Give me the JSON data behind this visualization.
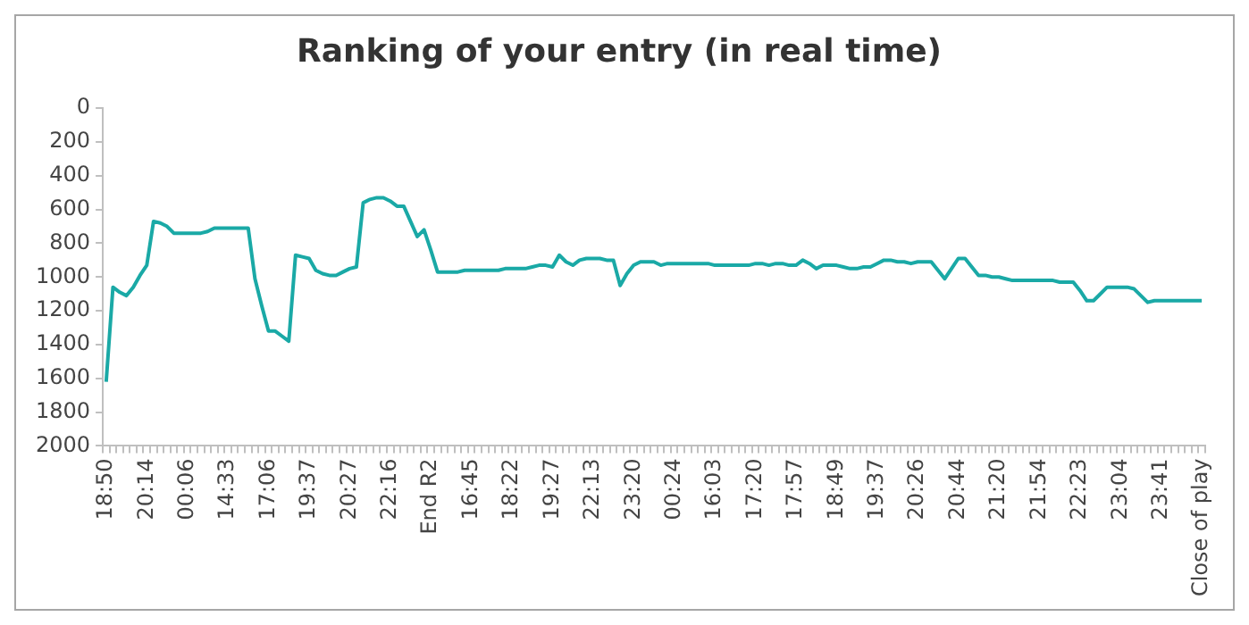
{
  "chart_data": {
    "type": "line",
    "title": "Ranking of your entry (in real time)",
    "categories": [
      "18:50",
      null,
      null,
      null,
      null,
      null,
      "20:14",
      null,
      null,
      null,
      null,
      null,
      "00:06",
      null,
      null,
      null,
      null,
      null,
      "14:33",
      null,
      null,
      null,
      null,
      null,
      "17:06",
      null,
      null,
      null,
      null,
      null,
      "19:37",
      null,
      null,
      null,
      null,
      null,
      "20:27",
      null,
      null,
      null,
      null,
      null,
      "22:16",
      null,
      null,
      null,
      null,
      null,
      "End R2",
      null,
      null,
      null,
      null,
      null,
      "16:45",
      null,
      null,
      null,
      null,
      null,
      "18:22",
      null,
      null,
      null,
      null,
      null,
      "19:27",
      null,
      null,
      null,
      null,
      null,
      "22:13",
      null,
      null,
      null,
      null,
      null,
      "23:20",
      null,
      null,
      null,
      null,
      null,
      "00:24",
      null,
      null,
      null,
      null,
      null,
      "16:03",
      null,
      null,
      null,
      null,
      null,
      "17:20",
      null,
      null,
      null,
      null,
      null,
      "17:57",
      null,
      null,
      null,
      null,
      null,
      "18:49",
      null,
      null,
      null,
      null,
      null,
      "19:37",
      null,
      null,
      null,
      null,
      null,
      "20:26",
      null,
      null,
      null,
      null,
      null,
      "20:44",
      null,
      null,
      null,
      null,
      null,
      "21:20",
      null,
      null,
      null,
      null,
      null,
      "21:54",
      null,
      null,
      null,
      null,
      null,
      "22:23",
      null,
      null,
      null,
      null,
      null,
      "23:04",
      null,
      null,
      null,
      null,
      null,
      "23:41",
      null,
      null,
      null,
      null,
      null,
      "Close of play"
    ],
    "series": [
      {
        "color": "#1aa9a6",
        "values": [
          1620,
          1060,
          1090,
          1110,
          1060,
          990,
          930,
          670,
          680,
          700,
          740,
          740,
          740,
          740,
          740,
          730,
          710,
          710,
          710,
          710,
          710,
          710,
          1010,
          1170,
          1320,
          1320,
          1350,
          1380,
          870,
          880,
          890,
          960,
          980,
          990,
          990,
          970,
          950,
          940,
          560,
          540,
          530,
          530,
          550,
          580,
          580,
          670,
          760,
          720,
          840,
          970,
          970,
          970,
          970,
          960,
          960,
          960,
          960,
          960,
          960,
          950,
          950,
          950,
          950,
          940,
          930,
          930,
          940,
          870,
          910,
          930,
          900,
          890,
          890,
          890,
          900,
          900,
          1050,
          980,
          930,
          910,
          910,
          910,
          930,
          920,
          920,
          920,
          920,
          920,
          920,
          920,
          930,
          930,
          930,
          930,
          930,
          930,
          920,
          920,
          930,
          920,
          920,
          930,
          930,
          900,
          920,
          950,
          930,
          930,
          930,
          940,
          950,
          950,
          940,
          940,
          920,
          900,
          900,
          910,
          910,
          920,
          910,
          910,
          910,
          960,
          1010,
          950,
          890,
          890,
          940,
          990,
          990,
          1000,
          1000,
          1010,
          1020,
          1020,
          1020,
          1020,
          1020,
          1020,
          1020,
          1030,
          1030,
          1030,
          1080,
          1140,
          1140,
          1100,
          1060,
          1060,
          1060,
          1060,
          1070,
          1110,
          1150,
          1140,
          1140,
          1140,
          1140,
          1140,
          1140,
          1140,
          1140
        ]
      }
    ],
    "ylim": [
      2000,
      0
    ],
    "yticks": [
      0,
      200,
      400,
      600,
      800,
      1000,
      1200,
      1400,
      1600,
      1800,
      2000
    ],
    "grid": false,
    "legend": false,
    "marker": "none",
    "line_style": "solid"
  }
}
